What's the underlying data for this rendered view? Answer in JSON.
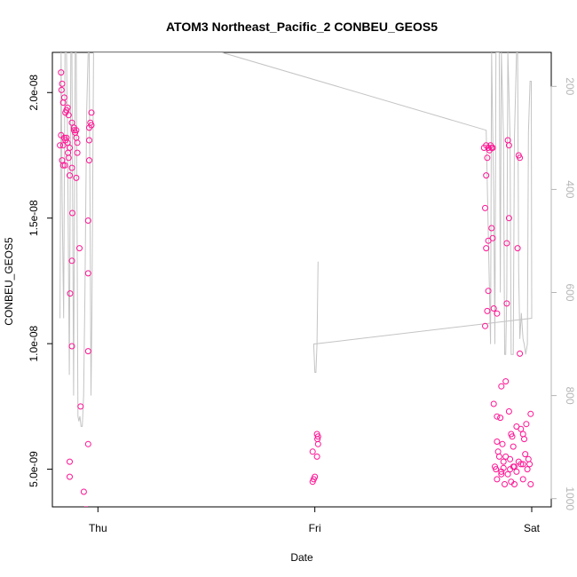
{
  "chart_data": {
    "type": "scatter",
    "title": "ATOM3 Northeast_Pacific_2 CONBEU_GEOS5",
    "xlabel": "Date",
    "ylabel": "CONBEU_GEOS5",
    "x_ticks": [
      {
        "value": 0.0,
        "label": "Thu"
      },
      {
        "value": 1.0,
        "label": "Fri"
      },
      {
        "value": 2.0,
        "label": "Sat"
      }
    ],
    "y_ticks": [
      {
        "value": 5e-09,
        "label": "5.0e-09"
      },
      {
        "value": 1e-08,
        "label": "1.0e-08"
      },
      {
        "value": 1.5e-08,
        "label": "1.5e-08"
      },
      {
        "value": 2e-08,
        "label": "2.0e-08"
      }
    ],
    "y2_ticks": [
      {
        "value": 200,
        "label": "200"
      },
      {
        "value": 400,
        "label": "400"
      },
      {
        "value": 600,
        "label": "600"
      },
      {
        "value": 800,
        "label": "800"
      },
      {
        "value": 1000,
        "label": "1000"
      }
    ],
    "xlim": [
      -0.21,
      2.09
    ],
    "ylim": [
      3.5e-09,
      2.16e-08
    ],
    "y2lim": [
      1016,
      134
    ],
    "y2_reversed": true,
    "grid": false,
    "colors": {
      "points": "#ff1493",
      "pressure_line": "#c4c4c4",
      "axis": "#000000",
      "axis_right": "#b5b5b5"
    },
    "series": [
      {
        "kind": "points",
        "points": [
          [
            -0.17,
            2.08e-08
          ],
          [
            -0.165,
            2.035e-08
          ],
          [
            -0.168,
            2.01e-08
          ],
          [
            -0.155,
            1.98e-08
          ],
          [
            -0.16,
            1.96e-08
          ],
          [
            -0.145,
            1.93e-08
          ],
          [
            -0.15,
            1.92e-08
          ],
          [
            -0.14,
            1.94e-08
          ],
          [
            -0.135,
            1.91e-08
          ],
          [
            -0.12,
            1.88e-08
          ],
          [
            -0.17,
            1.83e-08
          ],
          [
            -0.175,
            1.79e-08
          ],
          [
            -0.16,
            1.79e-08
          ],
          [
            -0.155,
            1.82e-08
          ],
          [
            -0.15,
            1.81e-08
          ],
          [
            -0.145,
            1.82e-08
          ],
          [
            -0.14,
            1.8e-08
          ],
          [
            -0.13,
            1.78e-08
          ],
          [
            -0.138,
            1.76e-08
          ],
          [
            -0.135,
            1.74e-08
          ],
          [
            -0.165,
            1.73e-08
          ],
          [
            -0.16,
            1.71e-08
          ],
          [
            -0.152,
            1.71e-08
          ],
          [
            -0.12,
            1.7e-08
          ],
          [
            -0.13,
            1.67e-08
          ],
          [
            -0.11,
            1.85e-08
          ],
          [
            -0.11,
            1.86e-08
          ],
          [
            -0.105,
            1.84e-08
          ],
          [
            -0.1,
            1.85e-08
          ],
          [
            -0.1,
            1.82e-08
          ],
          [
            -0.095,
            1.8e-08
          ],
          [
            -0.095,
            1.76e-08
          ],
          [
            -0.1,
            1.66e-08
          ],
          [
            -0.118,
            1.52e-08
          ],
          [
            -0.085,
            1.38e-08
          ],
          [
            -0.12,
            1.33e-08
          ],
          [
            -0.128,
            1.2e-08
          ],
          [
            -0.12,
            9.9e-09
          ],
          [
            -0.03,
            1.92e-08
          ],
          [
            -0.035,
            1.88e-08
          ],
          [
            -0.03,
            1.87e-08
          ],
          [
            -0.04,
            1.86e-08
          ],
          [
            -0.04,
            1.81e-08
          ],
          [
            -0.04,
            1.73e-08
          ],
          [
            -0.045,
            1.49e-08
          ],
          [
            -0.045,
            1.28e-08
          ],
          [
            -0.045,
            9.7e-09
          ],
          [
            -0.08,
            7.5e-09
          ],
          [
            -0.13,
            5.3e-09
          ],
          [
            -0.13,
            4.7e-09
          ],
          [
            -0.065,
            4.1e-09
          ],
          [
            -0.055,
            3.4e-09
          ],
          [
            -0.05,
            3.3e-09
          ],
          [
            -0.045,
            3e-09
          ],
          [
            -0.045,
            6e-09
          ],
          [
            1.01,
            6.4e-09
          ],
          [
            1.015,
            6.3e-09
          ],
          [
            1.012,
            6.2e-09
          ],
          [
            1.015,
            6e-09
          ],
          [
            0.99,
            5.7e-09
          ],
          [
            1.01,
            5.5e-09
          ],
          [
            1.0,
            4.7e-09
          ],
          [
            0.995,
            4.6e-09
          ],
          [
            0.99,
            4.5e-09
          ],
          [
            1.78,
            1.78e-08
          ],
          [
            1.79,
            1.79e-08
          ],
          [
            1.795,
            1.74e-08
          ],
          [
            1.8,
            1.78e-08
          ],
          [
            1.81,
            1.79e-08
          ],
          [
            1.815,
            1.78e-08
          ],
          [
            1.805,
            1.77e-08
          ],
          [
            1.82,
            1.78e-08
          ],
          [
            1.79,
            1.67e-08
          ],
          [
            1.785,
            1.54e-08
          ],
          [
            1.815,
            1.46e-08
          ],
          [
            1.82,
            1.42e-08
          ],
          [
            1.8,
            1.41e-08
          ],
          [
            1.79,
            1.38e-08
          ],
          [
            1.8,
            1.21e-08
          ],
          [
            1.795,
            1.13e-08
          ],
          [
            1.785,
            1.07e-08
          ],
          [
            1.825,
            1.14e-08
          ],
          [
            1.84,
            1.12e-08
          ],
          [
            1.89,
            1.81e-08
          ],
          [
            1.895,
            1.79e-08
          ],
          [
            1.94,
            1.75e-08
          ],
          [
            1.945,
            1.74e-08
          ],
          [
            1.895,
            1.5e-08
          ],
          [
            1.885,
            1.4e-08
          ],
          [
            1.935,
            1.38e-08
          ],
          [
            1.885,
            1.16e-08
          ],
          [
            1.945,
            9.6e-09
          ],
          [
            1.825,
            7.6e-09
          ],
          [
            1.84,
            7.1e-09
          ],
          [
            1.86,
            8.3e-09
          ],
          [
            1.88,
            8.5e-09
          ],
          [
            1.895,
            7.3e-09
          ],
          [
            1.855,
            7.05e-09
          ],
          [
            1.84,
            6.1e-09
          ],
          [
            1.865,
            6e-09
          ],
          [
            1.91,
            6.3e-09
          ],
          [
            1.93,
            6.7e-09
          ],
          [
            1.95,
            6.6e-09
          ],
          [
            1.96,
            6.4e-09
          ],
          [
            1.965,
            6.2e-09
          ],
          [
            1.975,
            6.8e-09
          ],
          [
            1.995,
            7.2e-09
          ],
          [
            1.845,
            5.7e-09
          ],
          [
            1.85,
            5.5e-09
          ],
          [
            1.87,
            5.3e-09
          ],
          [
            1.88,
            5.5e-09
          ],
          [
            1.9,
            5.4e-09
          ],
          [
            1.92,
            5.1e-09
          ],
          [
            1.94,
            5.3e-09
          ],
          [
            1.96,
            5.2e-09
          ],
          [
            1.98,
            5e-09
          ],
          [
            1.99,
            5.2e-09
          ],
          [
            1.83,
            5.1e-09
          ],
          [
            1.835,
            5e-09
          ],
          [
            1.86,
            4.9e-09
          ],
          [
            1.87,
            5.05e-09
          ],
          [
            1.89,
            4.8e-09
          ],
          [
            1.9,
            5e-09
          ],
          [
            1.915,
            5.1e-09
          ],
          [
            1.93,
            4.9e-09
          ],
          [
            1.95,
            5.2e-09
          ],
          [
            1.97,
            5.6e-09
          ],
          [
            1.985,
            5.4e-09
          ],
          [
            1.84,
            4.6e-09
          ],
          [
            1.86,
            4.8e-09
          ],
          [
            1.875,
            4.4e-09
          ],
          [
            1.905,
            4.5e-09
          ],
          [
            1.92,
            4.4e-09
          ],
          [
            1.96,
            4.6e-09
          ],
          [
            1.995,
            4.4e-09
          ],
          [
            1.905,
            6.4e-09
          ],
          [
            1.915,
            5.9e-09
          ]
        ]
      },
      {
        "kind": "pressure_line",
        "axis": "right",
        "points": [
          [
            -0.175,
            650
          ],
          [
            -0.17,
            134
          ],
          [
            -0.165,
            420
          ],
          [
            -0.158,
            650
          ],
          [
            -0.152,
            134
          ],
          [
            -0.145,
            134
          ],
          [
            -0.14,
            300
          ],
          [
            -0.132,
            760
          ],
          [
            -0.125,
            134
          ],
          [
            -0.12,
            134
          ],
          [
            -0.112,
            800
          ],
          [
            -0.105,
            134
          ],
          [
            -0.1,
            134
          ],
          [
            -0.092,
            840
          ],
          [
            -0.088,
            850
          ],
          [
            -0.083,
            840
          ],
          [
            -0.078,
            860
          ],
          [
            -0.072,
            860
          ],
          [
            -0.066,
            800
          ],
          [
            -0.06,
            600
          ],
          [
            -0.052,
            250
          ],
          [
            -0.045,
            134
          ],
          [
            -0.04,
            134
          ],
          [
            -0.032,
            800
          ],
          [
            -0.028,
            650
          ],
          [
            -0.02,
            134
          ],
          [
            0.57,
            134
          ],
          [
            1.79,
            285
          ],
          [
            1.81,
            700
          ],
          [
            1.815,
            134
          ],
          [
            1.825,
            420
          ],
          [
            1.83,
            700
          ],
          [
            1.835,
            134
          ],
          [
            1.85,
            134
          ],
          [
            1.855,
            600
          ],
          [
            1.86,
            134
          ],
          [
            1.87,
            300
          ],
          [
            1.875,
            720
          ],
          [
            1.88,
            720
          ],
          [
            1.885,
            600
          ],
          [
            1.89,
            134
          ],
          [
            1.9,
            300
          ],
          [
            1.905,
            720
          ],
          [
            1.915,
            720
          ],
          [
            1.92,
            300
          ],
          [
            1.93,
            134
          ],
          [
            1.935,
            134
          ],
          [
            1.94,
            560
          ],
          [
            1.945,
            690
          ],
          [
            1.952,
            640
          ],
          [
            1.96,
            690
          ],
          [
            1.965,
            700
          ],
          [
            1.972,
            720
          ],
          [
            1.98,
            700
          ],
          [
            1.985,
            290
          ],
          [
            1.992,
            190
          ],
          [
            1.998,
            190
          ],
          [
            2.0,
            650
          ],
          [
            0.995,
            700
          ],
          [
            1.0,
            755
          ],
          [
            1.005,
            755
          ],
          [
            1.01,
            700
          ],
          [
            1.015,
            540
          ]
        ]
      }
    ]
  }
}
